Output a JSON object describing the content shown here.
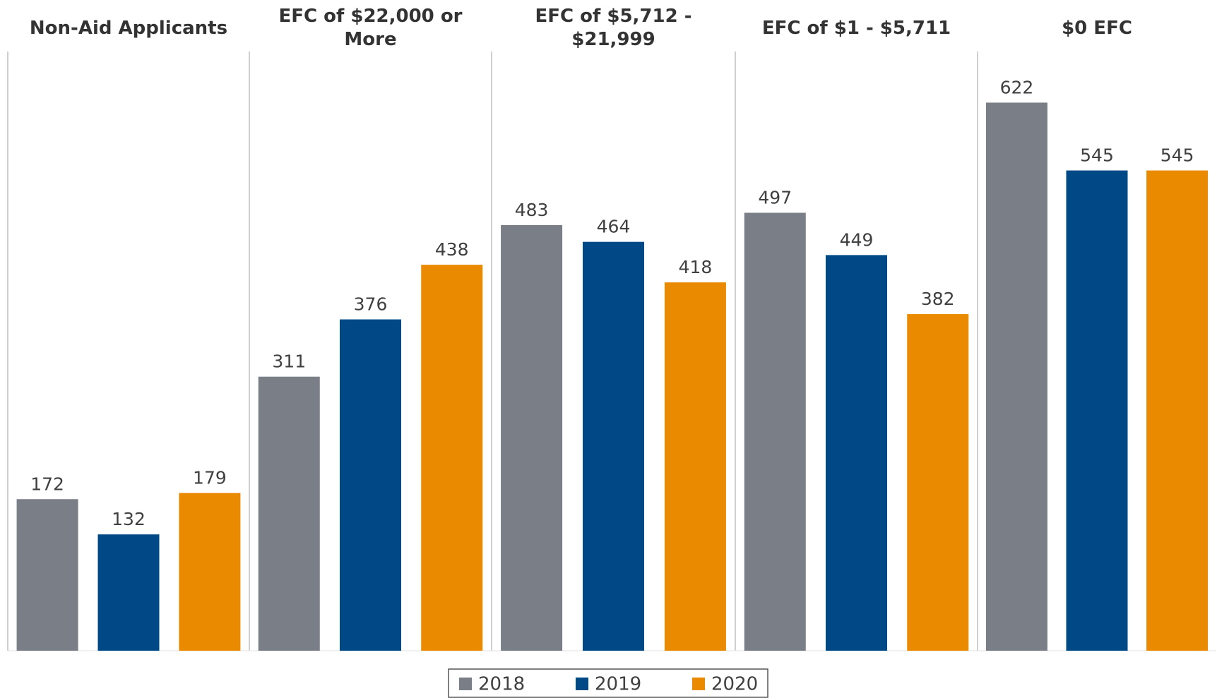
{
  "chart_data": {
    "type": "bar",
    "categories": [
      "Non-Aid Applicants",
      "EFC of $22,000 or More",
      "EFC of $5,712 - $21,999",
      "EFC of $1 - $5,711",
      "$0 EFC"
    ],
    "series": [
      {
        "name": "2018",
        "color": "#7a7f87",
        "values": [
          172,
          311,
          483,
          497,
          622
        ]
      },
      {
        "name": "2019",
        "color": "#004987",
        "values": [
          132,
          376,
          464,
          449,
          545
        ]
      },
      {
        "name": "2020",
        "color": "#e98a00",
        "values": [
          179,
          438,
          418,
          382,
          545
        ]
      }
    ],
    "ylim": [
      0,
      680
    ],
    "legend": "bottom"
  }
}
